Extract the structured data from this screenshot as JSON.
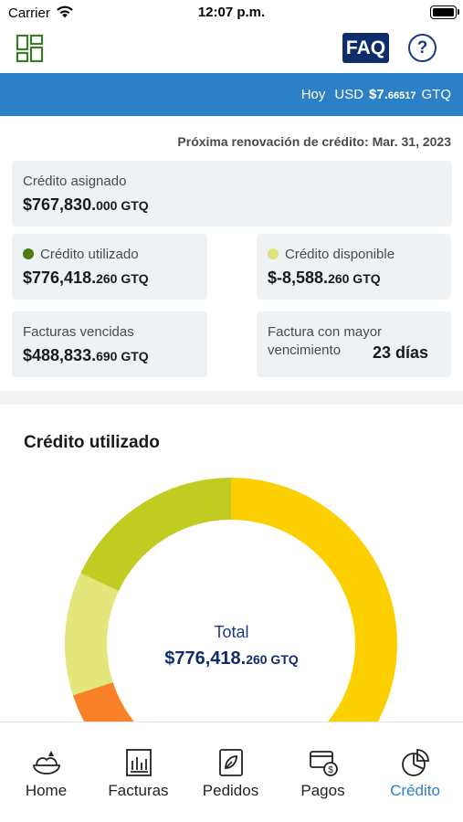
{
  "status_bar": {
    "carrier": "Carrier",
    "time": "12:07 p.m."
  },
  "header": {
    "faq_label": "FAQ",
    "help_label": "?"
  },
  "rate": {
    "today": "Hoy",
    "currency": "USD",
    "value_main": "$7.",
    "value_dec": "66517",
    "target_currency": "GTQ"
  },
  "renewal": "Próxima renovación de crédito: Mar. 31, 2023",
  "cards": {
    "assigned": {
      "label": "Crédito asignado",
      "value_main": "$767,830.",
      "value_dec": "000 GTQ"
    },
    "used": {
      "label": "Crédito utilizado",
      "value_main": "$776,418.",
      "value_dec": "260 GTQ",
      "dot_color": "#4f7a14"
    },
    "available": {
      "label": "Crédito disponible",
      "value_main": "$-8,588.",
      "value_dec": "260 GTQ",
      "dot_color": "#dfe27a"
    },
    "overdue": {
      "label": "Facturas vencidas",
      "value_main": "$488,833.",
      "value_dec": "690 GTQ"
    },
    "longest": {
      "label_line1": "Factura con mayor",
      "label_line2": "vencimiento",
      "value": "23 días"
    }
  },
  "chart_section": {
    "title": "Crédito utilizado",
    "total_label": "Total",
    "total_main": "$776,418.",
    "total_dec": "260 GTQ"
  },
  "chart_data": {
    "type": "pie",
    "donut": true,
    "segments": [
      {
        "color": "#fcd000",
        "fraction": 0.5
      },
      {
        "color": "#fb8128",
        "fraction": 0.2
      },
      {
        "color": "#e3e67a",
        "fraction": 0.12
      },
      {
        "color": "#c1cc22",
        "fraction": 0.18
      }
    ],
    "visible": "top half only"
  },
  "tabs": [
    {
      "label": "Home",
      "icon": "home-icon",
      "active": false
    },
    {
      "label": "Facturas",
      "icon": "invoices-icon",
      "active": false
    },
    {
      "label": "Pedidos",
      "icon": "orders-icon",
      "active": false
    },
    {
      "label": "Pagos",
      "icon": "payments-icon",
      "active": false
    },
    {
      "label": "Crédito",
      "icon": "credit-icon",
      "active": true
    }
  ],
  "colors": {
    "brand_blue": "#2c80c6",
    "navy": "#0f2c6b",
    "card_bg": "#eef2f5"
  }
}
